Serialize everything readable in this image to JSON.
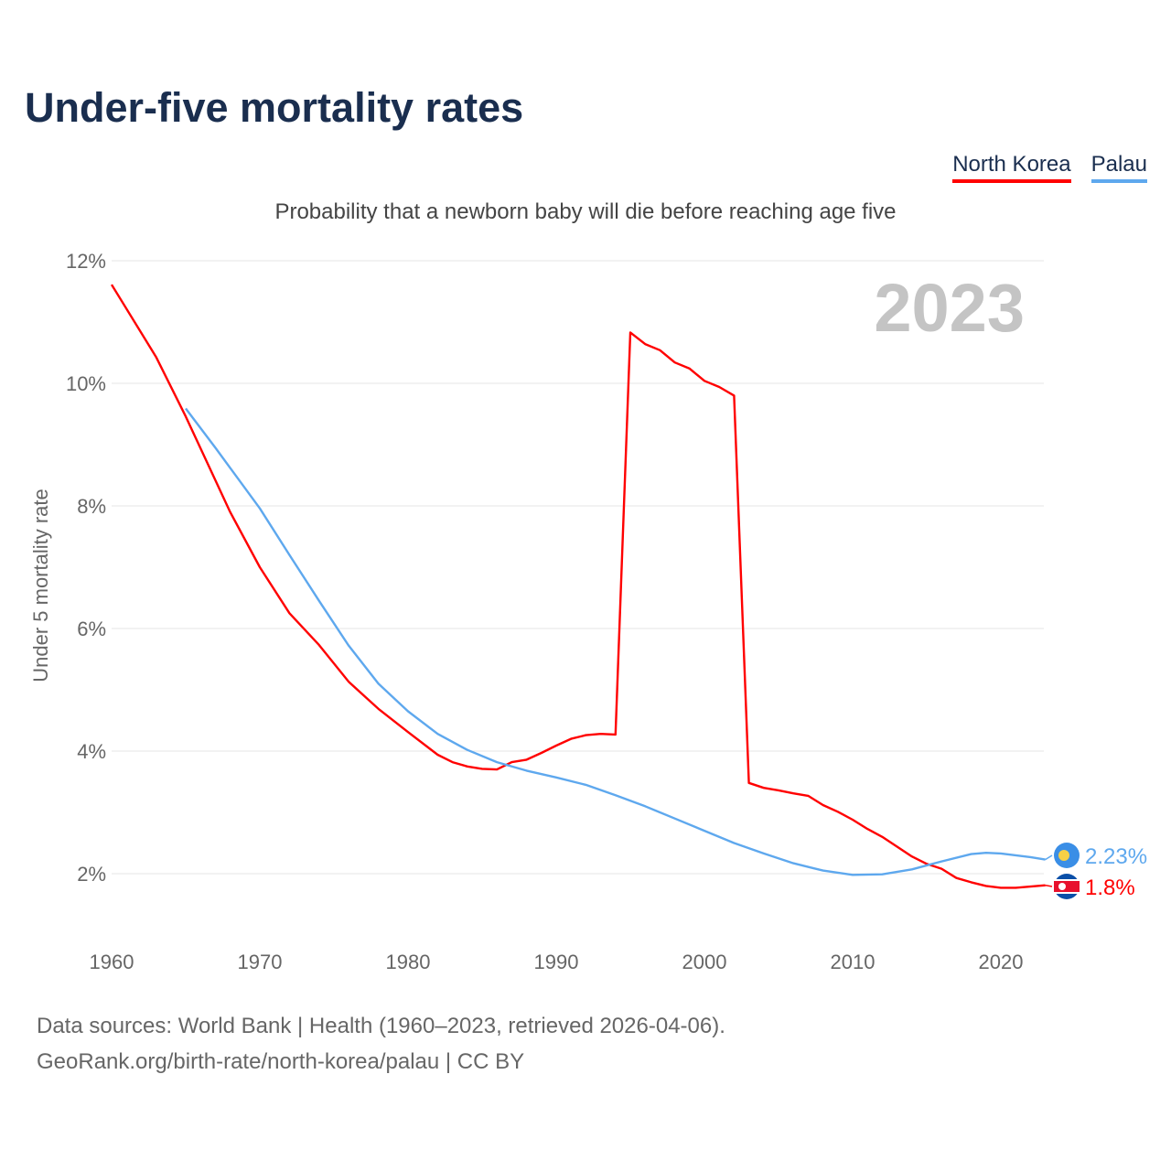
{
  "chart_data": {
    "type": "line",
    "title": "Under-five mortality rates",
    "subtitle": "Probability that a newborn baby will die before reaching age five",
    "ylabel": "Under 5 mortality rate",
    "xlabel": "",
    "year_label": "2023",
    "xlim": [
      1960,
      2023
    ],
    "ylim": [
      1,
      12
    ],
    "yticks": [
      2,
      4,
      6,
      8,
      10,
      12
    ],
    "ytick_labels": [
      "2%",
      "4%",
      "6%",
      "8%",
      "10%",
      "12%"
    ],
    "xticks": [
      1960,
      1970,
      1980,
      1990,
      2000,
      2010,
      2020
    ],
    "xtick_labels": [
      "1960",
      "1970",
      "1980",
      "1990",
      "2000",
      "2010",
      "2020"
    ],
    "grid": true,
    "legend_position": "top-right",
    "series": [
      {
        "name": "North Korea",
        "color": "#ff0000",
        "end_label": "1.8%",
        "x": [
          1960,
          1963,
          1965,
          1968,
          1970,
          1972,
          1974,
          1976,
          1978,
          1980,
          1982,
          1983,
          1984,
          1985,
          1986,
          1987,
          1988,
          1989,
          1990,
          1991,
          1992,
          1993,
          1994,
          1995,
          1996,
          1997,
          1998,
          1999,
          2000,
          2001,
          2002,
          2003,
          2004,
          2005,
          2006,
          2007,
          2008,
          2009,
          2010,
          2011,
          2012,
          2013,
          2014,
          2015,
          2016,
          2017,
          2018,
          2019,
          2020,
          2021,
          2022,
          2023
        ],
        "y": [
          11.61,
          10.43,
          9.46,
          7.9,
          7.0,
          6.25,
          5.73,
          5.13,
          4.69,
          4.31,
          3.94,
          3.82,
          3.75,
          3.71,
          3.7,
          3.82,
          3.86,
          3.97,
          4.09,
          4.2,
          4.26,
          4.28,
          4.27,
          10.83,
          10.64,
          10.54,
          10.34,
          10.24,
          10.04,
          9.94,
          9.8,
          3.48,
          3.4,
          3.36,
          3.31,
          3.27,
          3.12,
          3.01,
          2.88,
          2.73,
          2.6,
          2.44,
          2.28,
          2.16,
          2.08,
          1.93,
          1.86,
          1.8,
          1.77,
          1.77,
          1.79,
          1.81
        ]
      },
      {
        "name": "Palau",
        "color": "#5ea8ee",
        "end_label": "2.23%",
        "x": [
          1965,
          1967,
          1970,
          1972,
          1974,
          1976,
          1978,
          1980,
          1982,
          1984,
          1986,
          1988,
          1990,
          1992,
          1994,
          1996,
          1998,
          2000,
          2002,
          2004,
          2006,
          2008,
          2010,
          2012,
          2014,
          2016,
          2018,
          2019,
          2020,
          2022,
          2023
        ],
        "y": [
          9.59,
          8.95,
          7.96,
          7.2,
          6.45,
          5.72,
          5.1,
          4.65,
          4.28,
          4.02,
          3.82,
          3.68,
          3.57,
          3.45,
          3.28,
          3.1,
          2.9,
          2.7,
          2.5,
          2.33,
          2.17,
          2.05,
          1.98,
          1.99,
          2.07,
          2.2,
          2.32,
          2.34,
          2.33,
          2.27,
          2.23
        ]
      }
    ]
  },
  "footer": {
    "source": "Data sources: World Bank | Health (1960–2023, retrieved 2026-04-06).",
    "link": "GeoRank.org/birth-rate/north-korea/palau | CC BY"
  }
}
